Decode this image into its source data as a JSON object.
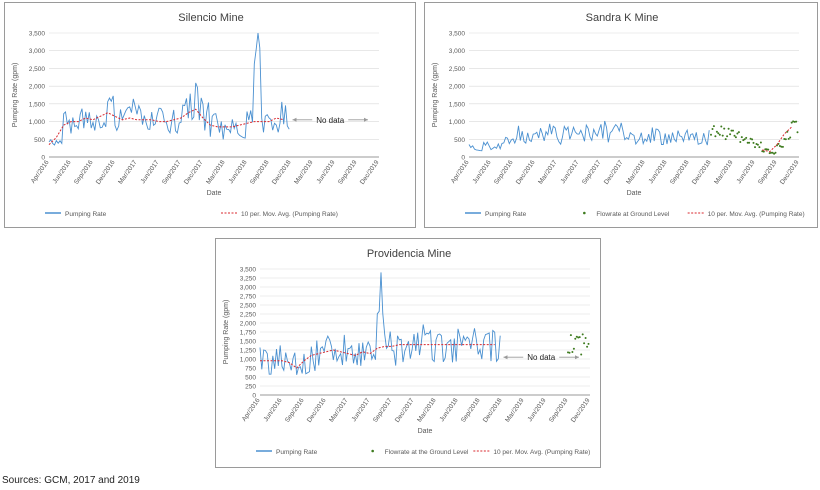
{
  "source_note": "Sources: GCM, 2017 and 2019",
  "colors": {
    "pumping": "#4a90d0",
    "avg": "#d9272e",
    "ground": "#3e7b1f",
    "grid": "#d9d9d9",
    "axis": "#7f7f7f"
  },
  "chart_data": [
    {
      "type": "line",
      "title": "Silencio Mine",
      "xlabel": "Date",
      "ylabel": "Pumping Rate (gpm)",
      "ylim": [
        0,
        3500
      ],
      "yticks": [
        "0",
        "500",
        "1,000",
        "1,500",
        "2,000",
        "2,500",
        "3,000",
        "3,500"
      ],
      "xticks": [
        "Apr/2016",
        "Jun/2016",
        "Sep/2016",
        "Dec/2016",
        "Mar/2017",
        "Jun/2017",
        "Sep/2017",
        "Dec/2017",
        "Mar/2018",
        "Jun/2018",
        "Sep/2018",
        "Dec/2018",
        "Mar/2019",
        "Jun/2019",
        "Sep/2019",
        "Dec/2019"
      ],
      "annotation": "No data",
      "legend": [
        "Pumping Rate",
        "10 per. Mov. Avg. (Pumping Rate)"
      ],
      "series": [
        {
          "name": "Pumping Rate",
          "x": [
            "2016-04",
            "2016-05",
            "2016-06",
            "2016-07",
            "2016-08",
            "2016-09",
            "2016-10",
            "2016-11",
            "2016-12",
            "2017-01",
            "2017-02",
            "2017-03",
            "2017-04",
            "2017-05",
            "2017-06",
            "2017-07",
            "2017-08",
            "2017-09",
            "2017-10",
            "2017-11",
            "2017-12",
            "2018-01",
            "2018-02",
            "2018-03",
            "2018-04",
            "2018-05",
            "2018-06",
            "2018-07",
            "2018-08",
            "2018-09",
            "2018-10",
            "2018-11",
            "2018-12"
          ],
          "y": [
            350,
            600,
            950,
            1100,
            1050,
            1200,
            1000,
            1250,
            1350,
            1100,
            1050,
            1200,
            1100,
            1050,
            1100,
            1000,
            1050,
            1100,
            1200,
            1350,
            1500,
            1100,
            900,
            800,
            850,
            900,
            850,
            1000,
            3150,
            1050,
            1000,
            1150,
            1100
          ]
        },
        {
          "name": "10 per. Mov. Avg. (Pumping Rate)",
          "x": [
            "2016-04",
            "2016-05",
            "2016-06",
            "2016-07",
            "2016-08",
            "2016-09",
            "2016-10",
            "2016-11",
            "2016-12",
            "2017-01",
            "2017-02",
            "2017-03",
            "2017-04",
            "2017-05",
            "2017-06",
            "2017-07",
            "2017-08",
            "2017-09",
            "2017-10",
            "2017-11",
            "2017-12",
            "2018-01",
            "2018-02",
            "2018-03",
            "2018-04",
            "2018-05",
            "2018-06",
            "2018-07",
            "2018-08",
            "2018-09",
            "2018-10",
            "2018-11",
            "2018-12"
          ],
          "y": [
            350,
            550,
            900,
            1000,
            1000,
            1100,
            1050,
            1150,
            1250,
            1150,
            1050,
            1100,
            1050,
            1050,
            1050,
            1000,
            1000,
            1050,
            1100,
            1250,
            1350,
            1100,
            900,
            850,
            850,
            850,
            900,
            950,
            1000,
            1000,
            1000,
            1100,
            1050
          ]
        }
      ]
    },
    {
      "type": "line",
      "title": "Sandra K Mine",
      "xlabel": "Date",
      "ylabel": "Pumping Rate (gpm)",
      "ylim": [
        0,
        3500
      ],
      "yticks": [
        "0",
        "500",
        "1,000",
        "1,500",
        "2,000",
        "2,500",
        "3,000",
        "3,500"
      ],
      "xticks": [
        "Apr/2016",
        "Jun/2016",
        "Sep/2016",
        "Dec/2016",
        "Mar/2017",
        "Jun/2017",
        "Sep/2017",
        "Dec/2017",
        "Mar/2018",
        "Jun/2018",
        "Sep/2018",
        "Dec/2018",
        "Mar/2019",
        "Jun/2019",
        "Sep/2019",
        "Dec/2019"
      ],
      "legend": [
        "Pumping Rate",
        "Flowrate at Ground Level",
        "10 per. Mov. Avg. (Pumping Rate)"
      ],
      "series": [
        {
          "name": "Pumping Rate",
          "x": [
            "2016-04",
            "2016-05",
            "2016-06",
            "2016-07",
            "2016-08",
            "2016-09",
            "2016-10",
            "2016-11",
            "2016-12",
            "2017-01",
            "2017-02",
            "2017-03",
            "2017-04",
            "2017-05",
            "2017-06",
            "2017-07",
            "2017-08",
            "2017-09",
            "2017-10",
            "2017-11",
            "2017-12",
            "2018-01",
            "2018-02",
            "2018-03",
            "2018-04",
            "2018-05",
            "2018-06",
            "2018-07",
            "2018-08",
            "2018-09",
            "2018-10",
            "2018-11",
            "2018-12"
          ],
          "y": [
            300,
            280,
            320,
            250,
            350,
            500,
            650,
            550,
            600,
            700,
            650,
            750,
            600,
            650,
            700,
            700,
            650,
            600,
            750,
            650,
            700,
            600,
            500,
            550,
            650,
            600,
            550,
            500,
            600,
            550,
            500,
            550,
            550
          ]
        },
        {
          "name": "Flowrate at Ground Level",
          "x": [
            "2019-01",
            "2019-02",
            "2019-03",
            "2019-04",
            "2019-05",
            "2019-06",
            "2019-07",
            "2019-08",
            "2019-09",
            "2019-10",
            "2019-11",
            "2019-12"
          ],
          "y": [
            700,
            750,
            650,
            600,
            500,
            450,
            350,
            200,
            100,
            300,
            600,
            900
          ]
        },
        {
          "name": "10 per. Mov. Avg. (Pumping Rate)",
          "x": [
            "2019-08",
            "2019-09",
            "2019-10",
            "2019-11",
            "2019-12"
          ],
          "y": [
            200,
            150,
            350,
            650,
            850
          ]
        }
      ]
    },
    {
      "type": "line",
      "title": "Providencia Mine",
      "xlabel": "Date",
      "ylabel": "Pumping Rate (gpm)",
      "ylim": [
        0,
        3500
      ],
      "yticks": [
        "0",
        "250",
        "500",
        "750",
        "1,000",
        "1,250",
        "1,500",
        "1,750",
        "2,000",
        "2,250",
        "2,500",
        "2,750",
        "3,000",
        "3,250",
        "3,500"
      ],
      "xticks": [
        "Apr/2016",
        "Jun/2016",
        "Sep/2016",
        "Dec/2016",
        "Mar/2017",
        "Jun/2017",
        "Sep/2017",
        "Dec/2017",
        "Mar/2018",
        "Jun/2018",
        "Sep/2018",
        "Dec/2018",
        "Mar/2019",
        "Jun/2019",
        "Sep/2019",
        "Dec/2019"
      ],
      "annotation": "No data",
      "legend": [
        "Pumping Rate",
        "Flowrate at the Ground Level",
        "10 per. Mov. Avg. (Pumping Rate)"
      ],
      "series": [
        {
          "name": "Pumping Rate",
          "x": [
            "2016-04",
            "2016-05",
            "2016-06",
            "2016-07",
            "2016-08",
            "2016-09",
            "2016-10",
            "2016-11",
            "2016-12",
            "2017-01",
            "2017-02",
            "2017-03",
            "2017-04",
            "2017-05",
            "2017-06",
            "2017-07",
            "2017-08",
            "2017-09",
            "2017-10",
            "2017-11",
            "2017-12",
            "2018-01",
            "2018-02",
            "2018-03",
            "2018-04",
            "2018-05",
            "2018-06",
            "2018-07",
            "2018-08",
            "2018-09",
            "2018-10",
            "2018-11",
            "2018-12"
          ],
          "y": [
            950,
            900,
            1000,
            950,
            850,
            600,
            900,
            1100,
            1200,
            1250,
            1300,
            1200,
            1150,
            1100,
            1300,
            1200,
            2700,
            1400,
            1350,
            1400,
            1450,
            1350,
            1400,
            1350,
            1400,
            1450,
            1400,
            1350,
            1400,
            1450,
            1400,
            1350,
            1450
          ]
        },
        {
          "name": "Flowrate at the Ground Level",
          "x": [
            "2019-10",
            "2019-11",
            "2019-12"
          ],
          "y": [
            1400,
            1450,
            1500
          ]
        },
        {
          "name": "10 per. Mov. Avg. (Pumping Rate)",
          "x": [
            "2016-04",
            "2016-05",
            "2016-06",
            "2016-07",
            "2016-08",
            "2016-09",
            "2016-10",
            "2016-11",
            "2016-12",
            "2017-01",
            "2017-02",
            "2017-03",
            "2017-04",
            "2017-05",
            "2017-06",
            "2017-07",
            "2017-08",
            "2017-09",
            "2017-10",
            "2017-11",
            "2017-12",
            "2018-01",
            "2018-02",
            "2018-03",
            "2018-04",
            "2018-05",
            "2018-06",
            "2018-07",
            "2018-08",
            "2018-09",
            "2018-10",
            "2018-11",
            "2018-12"
          ],
          "y": [
            950,
            950,
            950,
            950,
            900,
            750,
            950,
            1100,
            1150,
            1200,
            1250,
            1200,
            1150,
            1100,
            1200,
            1150,
            1300,
            1350,
            1350,
            1400,
            1400,
            1400,
            1400,
            1400,
            1400,
            1400,
            1400,
            1400,
            1400,
            1400,
            1400,
            1400,
            1400
          ]
        }
      ]
    }
  ]
}
